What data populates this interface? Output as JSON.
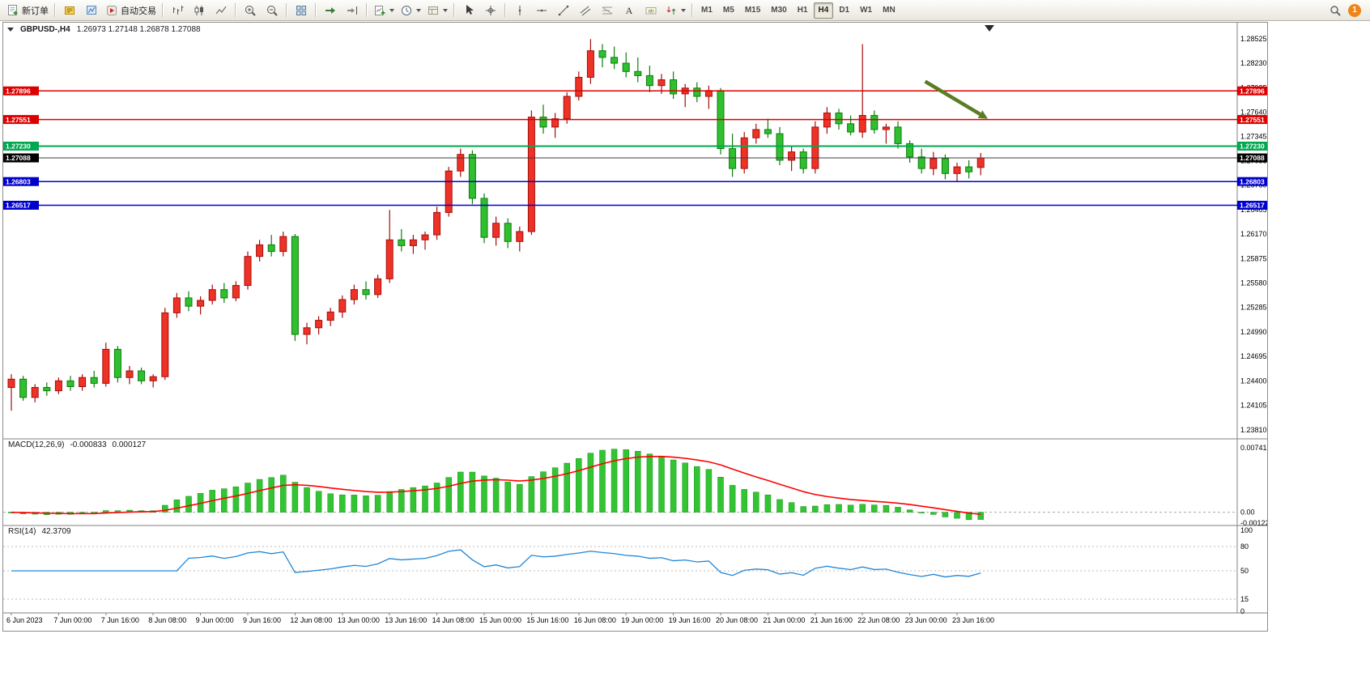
{
  "toolbar": {
    "new_order_label": "新订单",
    "autotrading_label": "自动交易",
    "groups": [
      [
        {
          "name": "new-order-button",
          "icon": "new-order",
          "label": "新订单"
        }
      ],
      [
        {
          "name": "terminal-button",
          "icon": "terminal"
        },
        {
          "name": "metaeditor-button",
          "icon": "metaeditor"
        },
        {
          "name": "autotrading-button",
          "icon": "autotrading",
          "label": "自动交易"
        }
      ],
      [
        {
          "name": "bar-chart-button",
          "icon": "bar-chart"
        },
        {
          "name": "candlestick-chart-button",
          "icon": "candle-chart"
        },
        {
          "name": "line-chart-button",
          "icon": "line-chart"
        }
      ],
      [
        {
          "name": "zoom-in-button",
          "icon": "zoom-in"
        },
        {
          "name": "zoom-out-button",
          "icon": "zoom-out"
        }
      ],
      [
        {
          "name": "tile-windows-button",
          "icon": "tile-windows"
        }
      ],
      [
        {
          "name": "auto-scroll-button",
          "icon": "auto-scroll"
        },
        {
          "name": "chart-shift-button",
          "icon": "chart-shift"
        }
      ],
      [
        {
          "name": "new-chart-button",
          "icon": "new-chart",
          "dropdown": true
        },
        {
          "name": "periods-button",
          "icon": "periods",
          "dropdown": true
        },
        {
          "name": "templates-button",
          "icon": "templates",
          "dropdown": true
        }
      ],
      [
        {
          "name": "cursor-button",
          "icon": "cursor"
        },
        {
          "name": "crosshair-button",
          "icon": "crosshair"
        }
      ],
      [
        {
          "name": "vertical-line-button",
          "icon": "vline"
        },
        {
          "name": "horizontal-line-button",
          "icon": "hline"
        },
        {
          "name": "trendline-button",
          "icon": "trendline"
        },
        {
          "name": "equidistant-channel-button",
          "icon": "channel"
        },
        {
          "name": "fibonacci-button",
          "icon": "fibonacci"
        },
        {
          "name": "text-button",
          "icon": "text"
        },
        {
          "name": "text-label-button",
          "icon": "label"
        },
        {
          "name": "arrows-button",
          "icon": "arrows",
          "dropdown": true
        }
      ]
    ],
    "timeframes": [
      {
        "label": "M1"
      },
      {
        "label": "M5"
      },
      {
        "label": "M15"
      },
      {
        "label": "M30"
      },
      {
        "label": "H1"
      },
      {
        "label": "H4",
        "active": true
      },
      {
        "label": "D1"
      },
      {
        "label": "W1"
      },
      {
        "label": "MN"
      }
    ],
    "notification_badge": "1"
  },
  "chart": {
    "symbol_period": "GBPUSD-,H4",
    "ohlc": "1.26973 1.27148 1.26878 1.27088",
    "colors": {
      "bull_fill": "#ee3226",
      "bull_stroke": "#a50e0e",
      "bear_fill": "#2fbf2f",
      "bear_stroke": "#0d7d0d",
      "macd_hist": "#33c433",
      "macd_signal": "#ff0000",
      "rsi_line": "#2186d6",
      "grid": "#808080"
    },
    "hlines": [
      {
        "price": 1.27896,
        "label": "1.27896",
        "color": "#dd0000"
      },
      {
        "price": 1.27551,
        "label": "1.27551",
        "color": "#dd0000"
      },
      {
        "price": 1.2723,
        "label": "1.27230",
        "color": "#00a84f"
      },
      {
        "price": 1.26803,
        "label": "1.26803",
        "color": "#0000cc"
      },
      {
        "price": 1.26517,
        "label": "1.26517",
        "color": "#0000cc"
      }
    ],
    "current_price": {
      "value": 1.27088,
      "label": "1.27088",
      "box_color": "#000000",
      "line_color": "#3c3c3c"
    },
    "arrow_annotation": {
      "from_bar": 77.3,
      "from_price": 1.2801,
      "to_bar": 82.6,
      "to_price": 1.2756,
      "color": "#5a7d23"
    }
  },
  "chart_data": {
    "type": "candlestick",
    "symbol": "GBPUSD",
    "timeframe": "H4",
    "price_range": {
      "min": 1.2372,
      "max": 1.2866
    },
    "price_axis_labels": [
      "1.28525",
      "1.28230",
      "1.27935",
      "1.27640",
      "1.27345",
      "1.27055",
      "1.26760",
      "1.26465",
      "1.26170",
      "1.25875",
      "1.25580",
      "1.25285",
      "1.24990",
      "1.24695",
      "1.24400",
      "1.24105",
      "1.23810"
    ],
    "time_labels": [
      "6 Jun 2023",
      "7 Jun 00:00",
      "7 Jun 16:00",
      "8 Jun 08:00",
      "9 Jun 00:00",
      "9 Jun 16:00",
      "12 Jun 08:00",
      "13 Jun 00:00",
      "13 Jun 16:00",
      "14 Jun 08:00",
      "15 Jun 00:00",
      "15 Jun 16:00",
      "16 Jun 08:00",
      "19 Jun 00:00",
      "19 Jun 16:00",
      "20 Jun 08:00",
      "21 Jun 00:00",
      "21 Jun 16:00",
      "22 Jun 08:00",
      "23 Jun 00:00",
      "23 Jun 16:00"
    ],
    "label_every_n_bars": 4,
    "candles": [
      [
        1.2432,
        1.2448,
        1.2404,
        1.2442
      ],
      [
        1.2442,
        1.2446,
        1.2416,
        1.242
      ],
      [
        1.242,
        1.2436,
        1.2414,
        1.2432
      ],
      [
        1.2432,
        1.2438,
        1.2422,
        1.2428
      ],
      [
        1.2428,
        1.2444,
        1.2424,
        1.244
      ],
      [
        1.244,
        1.2446,
        1.2428,
        1.2433
      ],
      [
        1.2433,
        1.2448,
        1.2428,
        1.2444
      ],
      [
        1.2444,
        1.2452,
        1.2432,
        1.2437
      ],
      [
        1.2437,
        1.2486,
        1.2433,
        1.2478
      ],
      [
        1.2478,
        1.2482,
        1.2438,
        1.2444
      ],
      [
        1.2444,
        1.2458,
        1.2436,
        1.2452
      ],
      [
        1.2452,
        1.2456,
        1.2436,
        1.244
      ],
      [
        1.244,
        1.2448,
        1.2432,
        1.2445
      ],
      [
        1.2445,
        1.2528,
        1.2441,
        1.2522
      ],
      [
        1.2522,
        1.2546,
        1.2516,
        1.254
      ],
      [
        1.254,
        1.2548,
        1.2524,
        1.253
      ],
      [
        1.253,
        1.2542,
        1.252,
        1.2537
      ],
      [
        1.2537,
        1.2556,
        1.2532,
        1.255
      ],
      [
        1.255,
        1.2558,
        1.2534,
        1.254
      ],
      [
        1.254,
        1.256,
        1.2536,
        1.2555
      ],
      [
        1.2555,
        1.2596,
        1.255,
        1.259
      ],
      [
        1.259,
        1.261,
        1.2584,
        1.2604
      ],
      [
        1.2604,
        1.2616,
        1.259,
        1.2596
      ],
      [
        1.2596,
        1.262,
        1.259,
        1.2614
      ],
      [
        1.2614,
        1.2617,
        1.2488,
        1.2496
      ],
      [
        1.2496,
        1.251,
        1.2484,
        1.2504
      ],
      [
        1.2504,
        1.2518,
        1.2496,
        1.2513
      ],
      [
        1.2513,
        1.2528,
        1.2506,
        1.2523
      ],
      [
        1.2523,
        1.2543,
        1.2516,
        1.2538
      ],
      [
        1.2538,
        1.2556,
        1.2532,
        1.255
      ],
      [
        1.255,
        1.256,
        1.2538,
        1.2544
      ],
      [
        1.2544,
        1.2568,
        1.254,
        1.2563
      ],
      [
        1.2563,
        1.2646,
        1.2558,
        1.261
      ],
      [
        1.261,
        1.2623,
        1.2596,
        1.2603
      ],
      [
        1.2603,
        1.2616,
        1.2593,
        1.261
      ],
      [
        1.261,
        1.262,
        1.2598,
        1.2616
      ],
      [
        1.2616,
        1.265,
        1.261,
        1.2643
      ],
      [
        1.2643,
        1.2698,
        1.2638,
        1.2693
      ],
      [
        1.2693,
        1.272,
        1.2686,
        1.2713
      ],
      [
        1.2713,
        1.2718,
        1.2653,
        1.266
      ],
      [
        1.266,
        1.2666,
        1.2606,
        1.2613
      ],
      [
        1.2613,
        1.2638,
        1.2603,
        1.263
      ],
      [
        1.263,
        1.2636,
        1.26,
        1.2608
      ],
      [
        1.2608,
        1.2626,
        1.2596,
        1.262
      ],
      [
        1.262,
        1.2766,
        1.2616,
        1.2758
      ],
      [
        1.2758,
        1.2773,
        1.2738,
        1.2746
      ],
      [
        1.2746,
        1.2763,
        1.2733,
        1.2756
      ],
      [
        1.2756,
        1.2788,
        1.275,
        1.2783
      ],
      [
        1.2783,
        1.2813,
        1.2778,
        1.2806
      ],
      [
        1.2806,
        1.2852,
        1.2798,
        1.2838
      ],
      [
        1.2838,
        1.2846,
        1.2818,
        1.283
      ],
      [
        1.283,
        1.2843,
        1.2816,
        1.2823
      ],
      [
        1.2823,
        1.2836,
        1.2806,
        1.2813
      ],
      [
        1.2813,
        1.283,
        1.28,
        1.2808
      ],
      [
        1.2808,
        1.282,
        1.2788,
        1.2796
      ],
      [
        1.2796,
        1.281,
        1.2786,
        1.2803
      ],
      [
        1.2803,
        1.2813,
        1.278,
        1.2786
      ],
      [
        1.2786,
        1.2798,
        1.277,
        1.2793
      ],
      [
        1.2793,
        1.28,
        1.2776,
        1.2783
      ],
      [
        1.2783,
        1.2796,
        1.2768,
        1.279
      ],
      [
        1.279,
        1.2793,
        1.2713,
        1.272
      ],
      [
        1.272,
        1.2738,
        1.2686,
        1.2696
      ],
      [
        1.2696,
        1.274,
        1.269,
        1.2733
      ],
      [
        1.2733,
        1.275,
        1.2726,
        1.2743
      ],
      [
        1.2743,
        1.2756,
        1.2733,
        1.2738
      ],
      [
        1.2738,
        1.2746,
        1.27,
        1.2706
      ],
      [
        1.2706,
        1.2723,
        1.2693,
        1.2716
      ],
      [
        1.2716,
        1.272,
        1.269,
        1.2696
      ],
      [
        1.2696,
        1.2753,
        1.269,
        1.2746
      ],
      [
        1.2746,
        1.277,
        1.2738,
        1.2763
      ],
      [
        1.2763,
        1.2768,
        1.2743,
        1.275
      ],
      [
        1.275,
        1.276,
        1.2736,
        1.274
      ],
      [
        1.274,
        1.2846,
        1.2733,
        1.276
      ],
      [
        1.276,
        1.2766,
        1.2738,
        1.2743
      ],
      [
        1.2743,
        1.275,
        1.2726,
        1.2746
      ],
      [
        1.2746,
        1.2753,
        1.272,
        1.2726
      ],
      [
        1.2726,
        1.273,
        1.2703,
        1.271
      ],
      [
        1.271,
        1.272,
        1.269,
        1.2696
      ],
      [
        1.2696,
        1.2716,
        1.2688,
        1.2708
      ],
      [
        1.2708,
        1.2713,
        1.2683,
        1.269
      ],
      [
        1.269,
        1.2703,
        1.268,
        1.2698
      ],
      [
        1.2698,
        1.2706,
        1.2684,
        1.2692
      ],
      [
        1.26973,
        1.27148,
        1.26878,
        1.27088
      ]
    ],
    "macd": {
      "label": "MACD(12,26,9)",
      "value_main": "-0.000833",
      "value_signal": "0.000127",
      "params": [
        12,
        26,
        9
      ],
      "axis": [
        "0.007412",
        "0.00",
        "-0.001226"
      ]
    },
    "rsi": {
      "label": "RSI(14)",
      "value": "42.3709",
      "period": 14,
      "levels": [
        100,
        80,
        50,
        15,
        0
      ]
    }
  }
}
